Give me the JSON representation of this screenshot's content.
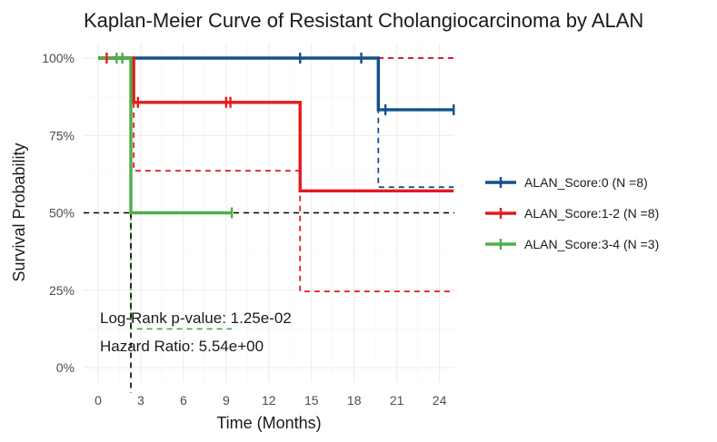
{
  "chart_data": {
    "type": "line",
    "subtype": "kaplan-meier",
    "title": "Kaplan-Meier Curve of Resistant Cholangiocarcinoma by ALAN",
    "xlabel": "Time (Months)",
    "ylabel": "Survival Probability",
    "xlim": [
      -1.3,
      25
    ],
    "ylim": [
      0,
      1
    ],
    "x_ticks": [
      0,
      3,
      6,
      9,
      12,
      15,
      18,
      21,
      24
    ],
    "y_ticks": [
      {
        "value": 0,
        "label": "0%"
      },
      {
        "value": 0.25,
        "label": "25%"
      },
      {
        "value": 0.5,
        "label": "50%"
      },
      {
        "value": 0.75,
        "label": "75%"
      },
      {
        "value": 1,
        "label": "100%"
      }
    ],
    "grid": true,
    "legend_position": "right",
    "annotations": [
      "Log-Rank p-value: 1.25e-02",
      "Hazard Ratio: 5.54e+00"
    ],
    "median_reference": {
      "y": 0.5,
      "x": 2.3
    },
    "series": [
      {
        "name": "ALAN_Score:0 (N =8)",
        "color": "#154f8c",
        "steps": [
          [
            0,
            1.0
          ],
          [
            19.7,
            0.833
          ],
          [
            25,
            0.833
          ]
        ],
        "censored": [
          [
            14.2,
            1.0
          ],
          [
            18.5,
            1.0
          ],
          [
            20.2,
            0.833
          ],
          [
            25,
            0.833
          ]
        ],
        "ci_lower": [
          [
            0,
            1.0
          ],
          [
            19.7,
            0.583
          ],
          [
            25,
            0.583
          ]
        ],
        "ci_upper": [
          [
            0,
            1.0
          ],
          [
            25,
            1.0
          ]
        ]
      },
      {
        "name": "ALAN_Score:1-2 (N =8)",
        "color": "#e41a1c",
        "steps": [
          [
            0,
            1.0
          ],
          [
            2.5,
            0.857
          ],
          [
            14.2,
            0.571
          ],
          [
            25,
            0.571
          ]
        ],
        "censored": [
          [
            0.6,
            1.0
          ],
          [
            2.8,
            0.857
          ],
          [
            9.0,
            0.857
          ],
          [
            9.3,
            0.857
          ]
        ],
        "ci_lower": [
          [
            0,
            1.0
          ],
          [
            2.5,
            0.636
          ],
          [
            14.2,
            0.246
          ],
          [
            25,
            0.246
          ]
        ],
        "ci_upper": [
          [
            0,
            1.0
          ],
          [
            25,
            1.0
          ]
        ]
      },
      {
        "name": "ALAN_Score:3-4 (N =3)",
        "color": "#4daf4a",
        "steps": [
          [
            0,
            1.0
          ],
          [
            2.3,
            0.5
          ],
          [
            9.4,
            0.5
          ]
        ],
        "censored": [
          [
            1.3,
            1.0
          ],
          [
            1.7,
            1.0
          ],
          [
            9.4,
            0.5
          ]
        ],
        "ci_lower": [
          [
            0,
            1.0
          ],
          [
            2.3,
            0.125
          ],
          [
            9.4,
            0.125
          ]
        ],
        "ci_upper": [
          [
            0,
            1.0
          ],
          [
            9.4,
            1.0
          ]
        ]
      }
    ]
  }
}
